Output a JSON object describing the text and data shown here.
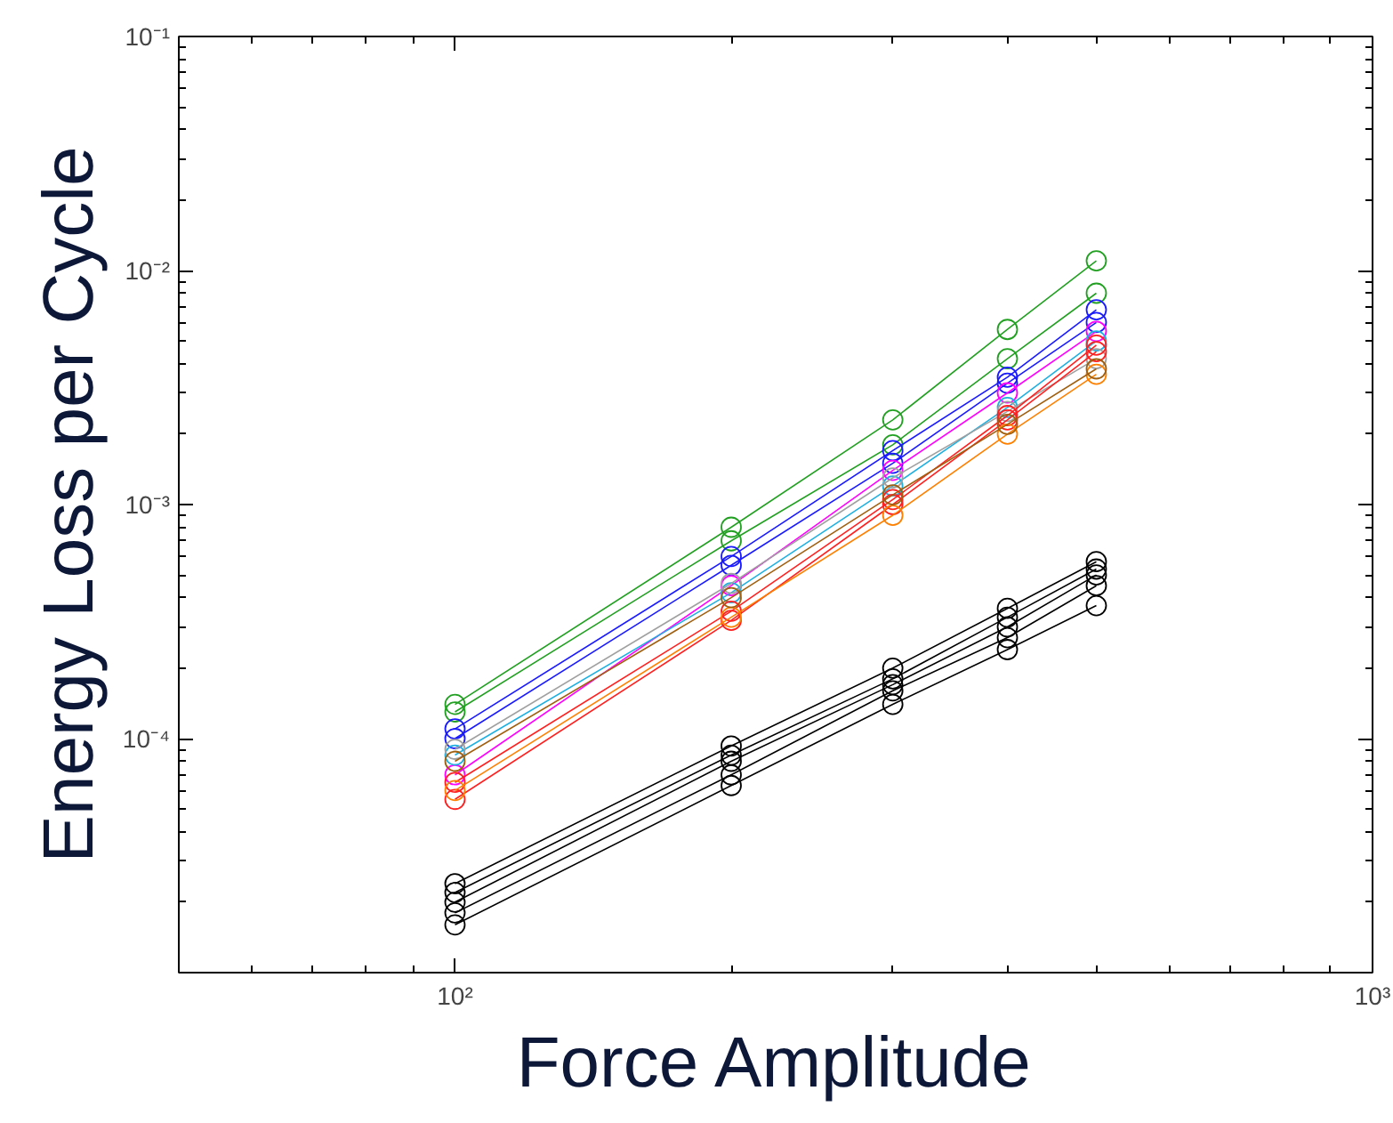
{
  "chart_data": {
    "type": "line",
    "xlabel": "Force Amplitude",
    "ylabel": "Energy Loss per Cycle",
    "log": "xy",
    "grid": false,
    "marker": "circle",
    "line_style": "solid",
    "x": [
      100,
      200,
      300,
      400,
      500
    ],
    "xlim": [
      50,
      1000
    ],
    "xticks": [
      {
        "value": 100,
        "label": "10²"
      },
      {
        "value": 1000,
        "label": "10³"
      }
    ],
    "ylim": [
      1e-05,
      0.1
    ],
    "yticks": [
      {
        "value": 0.0001,
        "label": "10⁻⁴"
      },
      {
        "value": 0.001,
        "label": "10⁻³"
      },
      {
        "value": 0.01,
        "label": "10⁻²"
      },
      {
        "value": 0.1,
        "label": "10⁻¹"
      }
    ],
    "series": [
      {
        "color": "#22a022",
        "values": [
          0.00014,
          0.0008,
          0.0023,
          0.0056,
          0.011
        ]
      },
      {
        "color": "#22a022",
        "values": [
          0.00013,
          0.0007,
          0.0018,
          0.0042,
          0.008
        ]
      },
      {
        "color": "#1a1aff",
        "values": [
          0.00011,
          0.0006,
          0.0017,
          0.0035,
          0.0068
        ]
      },
      {
        "color": "#1a1aff",
        "values": [
          0.0001,
          0.00055,
          0.0015,
          0.0033,
          0.006
        ]
      },
      {
        "color": "#ff00ff",
        "values": [
          7e-05,
          0.00045,
          0.0014,
          0.003,
          0.0055
        ]
      },
      {
        "color": "#20b0e0",
        "values": [
          8.5e-05,
          0.00042,
          0.0012,
          0.0026,
          0.005
        ]
      },
      {
        "color": "#a0a0a0",
        "values": [
          9e-05,
          0.00046,
          0.0013,
          0.0025,
          0.0042
        ]
      },
      {
        "color": "#ff2020",
        "values": [
          5.5e-05,
          0.00032,
          0.001,
          0.0023,
          0.0045
        ]
      },
      {
        "color": "#ff2020",
        "values": [
          6.5e-05,
          0.00035,
          0.00105,
          0.0024,
          0.0048
        ]
      },
      {
        "color": "#ff8000",
        "values": [
          6e-05,
          0.00033,
          0.0009,
          0.002,
          0.0036
        ]
      },
      {
        "color": "#a06010",
        "values": [
          8e-05,
          0.0004,
          0.0011,
          0.0022,
          0.0038
        ]
      },
      {
        "color": "#000000",
        "values": [
          2.4e-05,
          9.3e-05,
          0.0002,
          0.00036,
          0.00057
        ]
      },
      {
        "color": "#000000",
        "values": [
          2.2e-05,
          8.5e-05,
          0.00018,
          0.00033,
          0.00053
        ]
      },
      {
        "color": "#000000",
        "values": [
          2e-05,
          8e-05,
          0.00017,
          0.0003,
          0.0005
        ]
      },
      {
        "color": "#000000",
        "values": [
          1.8e-05,
          7e-05,
          0.00016,
          0.00027,
          0.00045
        ]
      },
      {
        "color": "#000000",
        "values": [
          1.6e-05,
          6.3e-05,
          0.00014,
          0.00024,
          0.00037
        ]
      }
    ]
  }
}
